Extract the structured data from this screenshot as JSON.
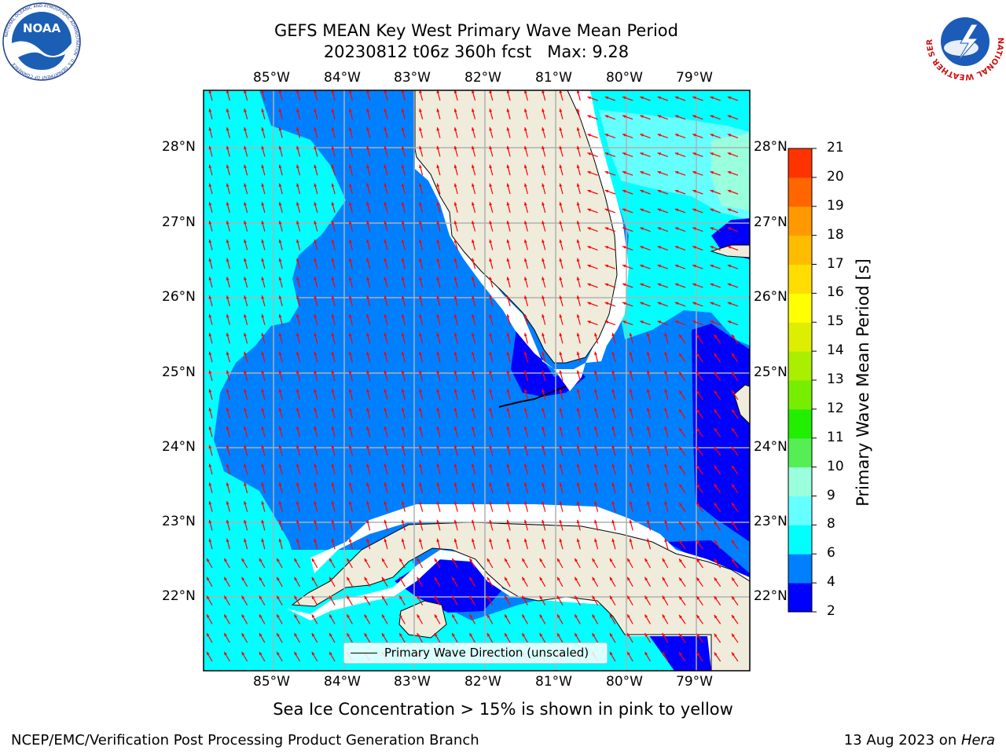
{
  "header": {
    "title_line1": "GEFS MEAN Key West Primary Wave Mean Period",
    "title_line2": "20230812 t06z 360h fcst   Max: 9.28"
  },
  "map": {
    "lon_labels": [
      "85°W",
      "84°W",
      "83°W",
      "82°W",
      "81°W",
      "80°W",
      "79°W"
    ],
    "lat_labels": [
      "28°N",
      "27°N",
      "26°N",
      "25°N",
      "24°N",
      "23°N",
      "22°N"
    ],
    "legend_label": "Primary Wave Direction (unscaled)",
    "colors": {
      "land": "#efecdc",
      "c2_4": "#0000ff",
      "c4_6": "#0080ff",
      "c6_8": "#00ffff",
      "c8_9": "#66ffff",
      "c9_10": "#99ffdd",
      "arrow": "#ff0000",
      "grid": "#b0b0b0"
    }
  },
  "colorbar": {
    "label": "Primary Wave Mean Period [s]",
    "ticks": [
      "2",
      "4",
      "6",
      "8",
      "9",
      "10",
      "11",
      "12",
      "13",
      "14",
      "15",
      "16",
      "17",
      "18",
      "19",
      "20",
      "21"
    ],
    "colors": [
      "#0000ff",
      "#0080ff",
      "#00ffff",
      "#66ffff",
      "#99ffdd",
      "#55ee55",
      "#22ee00",
      "#77ee00",
      "#aaee00",
      "#ddee00",
      "#ffff00",
      "#ffdd00",
      "#ffbb00",
      "#ff9900",
      "#ff6600",
      "#ff3300",
      "#ff0000"
    ]
  },
  "caption": "Sea Ice Concentration > 15% is shown in pink to yellow",
  "footer": {
    "left": "NCEP/EMC/Verification Post Processing Product Generation Branch",
    "right_prefix": "13 Aug 2023 on ",
    "right_italic": "Hera"
  },
  "logos": {
    "noaa_text": "NOAA",
    "noaa_ring": "NATIONAL OCEANIC AND ATMOSPHERIC ADMINISTRATION · U.S. DEPARTMENT OF COMMERCE",
    "nws_ring": "NATIONAL WEATHER SERVICE"
  }
}
